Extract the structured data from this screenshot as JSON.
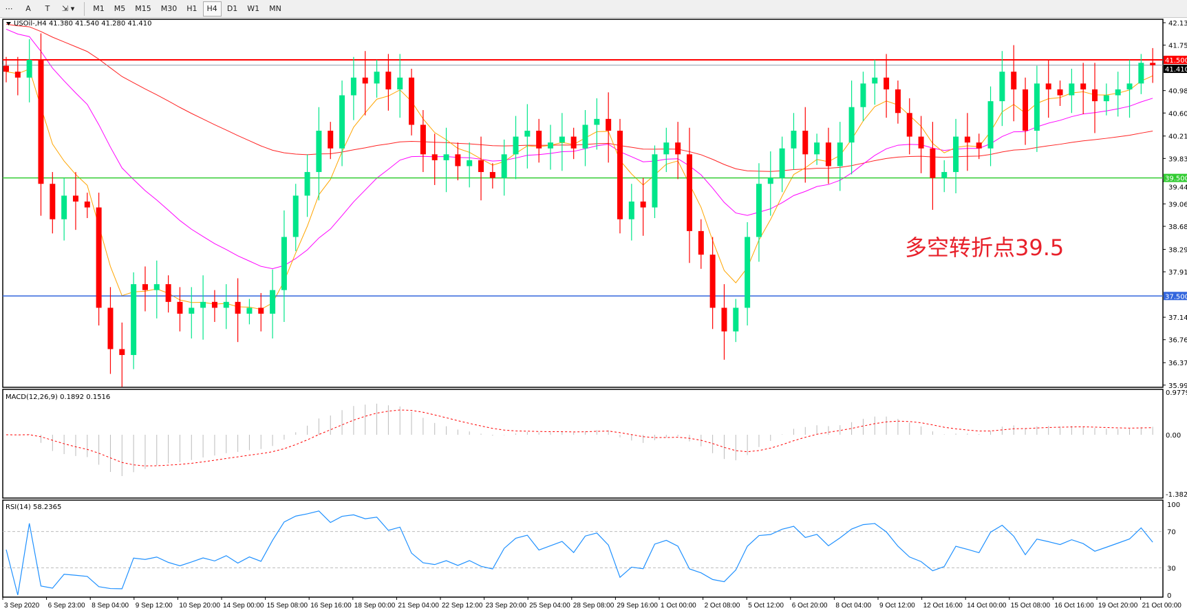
{
  "toolbar": {
    "tools": [
      {
        "name": "crosshair-grid-icon",
        "label": "⋯"
      },
      {
        "name": "text-tool-icon",
        "label": "A"
      },
      {
        "name": "text-label-tool-icon",
        "label": "T"
      },
      {
        "name": "arrows-tool-icon",
        "label": "⇲ ▾"
      }
    ],
    "timeframes": [
      "M1",
      "M5",
      "M15",
      "M30",
      "H1",
      "H4",
      "D1",
      "W1",
      "MN"
    ],
    "active_timeframe": "H4"
  },
  "chart": {
    "header": "USOil-,H4  41.380 41.540 41.280 41.410",
    "symbol": "USOil-",
    "timeframe": "H4",
    "open": 41.38,
    "high": 41.54,
    "low": 41.28,
    "close": 41.41,
    "price_labels": [
      "42.130",
      "41.750",
      "40.980",
      "40.600",
      "40.210",
      "39.830",
      "39.440",
      "39.060",
      "38.680",
      "38.290",
      "37.910",
      "37.140",
      "36.760",
      "36.370",
      "35.990"
    ],
    "levels": [
      {
        "price": 41.5,
        "label": "41.500",
        "color": "#ff0000"
      },
      {
        "price": 39.5,
        "label": "39.500",
        "color": "#33cc33"
      },
      {
        "price": 37.5,
        "label": "37.500",
        "color": "#3366dd"
      }
    ],
    "current_price": {
      "price": 41.41,
      "label": "41.410"
    },
    "annotation": "多空转折点39.5",
    "colors": {
      "up": "#00e68a",
      "down": "#ff0000",
      "ma_fast": "#ffa500",
      "ma_mid": "#ff00ff",
      "ma_slow": "#ff2222"
    },
    "closes": [
      41.3,
      41.2,
      41.5,
      39.4,
      38.8,
      39.2,
      39.1,
      39.0,
      37.3,
      36.6,
      36.5,
      37.7,
      37.6,
      37.7,
      37.4,
      37.2,
      37.3,
      37.4,
      37.3,
      37.4,
      37.2,
      37.3,
      37.2,
      37.6,
      38.5,
      39.2,
      39.6,
      40.3,
      40.0,
      40.9,
      41.2,
      41.1,
      41.3,
      41.0,
      41.2,
      40.4,
      39.9,
      39.8,
      39.9,
      39.7,
      39.8,
      39.6,
      39.5,
      39.9,
      40.2,
      40.3,
      40.0,
      40.1,
      40.2,
      40.0,
      40.4,
      40.5,
      40.3,
      38.8,
      39.1,
      39.0,
      39.9,
      40.1,
      39.9,
      38.6,
      38.2,
      37.3,
      36.9,
      37.3,
      38.5,
      39.4,
      39.5,
      40.0,
      40.3,
      39.9,
      40.1,
      39.7,
      40.1,
      40.7,
      41.1,
      41.2,
      41.0,
      40.6,
      40.2,
      40.0,
      39.5,
      39.6,
      40.2,
      40.1,
      40.0,
      40.8,
      41.3,
      41.0,
      40.3,
      41.1,
      41.0,
      40.9,
      41.1,
      41.0,
      40.8,
      40.9,
      41.0,
      41.1,
      41.45,
      41.41
    ]
  },
  "macd": {
    "label": "MACD(12,26,9) 0.1892 0.1516",
    "scale": [
      "0.9779",
      "0.00",
      "-1.382"
    ]
  },
  "rsi": {
    "label": "RSI(14) 58.2365",
    "scale": [
      "100",
      "70",
      "30",
      "0"
    ],
    "value": 58.2365
  },
  "time_axis": [
    "3 Sep 2020",
    "6 Sep 23:00",
    "8 Sep 04:00",
    "9 Sep 12:00",
    "10 Sep 20:00",
    "14 Sep 00:00",
    "15 Sep 08:00",
    "16 Sep 16:00",
    "18 Sep 00:00",
    "21 Sep 04:00",
    "22 Sep 12:00",
    "23 Sep 20:00",
    "25 Sep 04:00",
    "28 Sep 08:00",
    "29 Sep 16:00",
    "1 Oct 00:00",
    "2 Oct 08:00",
    "5 Oct 12:00",
    "6 Oct 20:00",
    "8 Oct 04:00",
    "9 Oct 12:00",
    "12 Oct 16:00",
    "14 Oct 00:00",
    "15 Oct 08:00",
    "16 Oct 16:00",
    "19 Oct 20:00",
    "21 Oct 00:00"
  ]
}
